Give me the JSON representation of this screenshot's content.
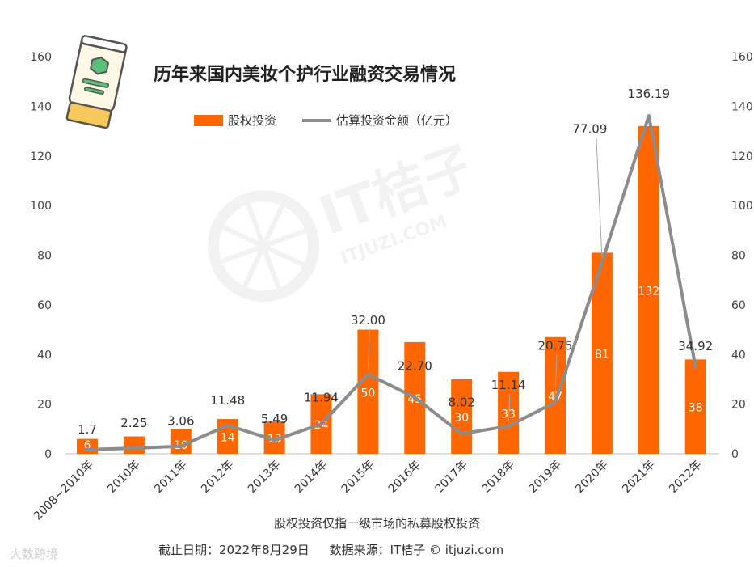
{
  "title": "历年来国内美妆个护行业融资交易情况",
  "legend": {
    "bar_label": "股权投资",
    "line_label": "估算投资金额（亿元）"
  },
  "note": "股权投资仅指一级市场的私募股权投资",
  "footer": {
    "date": "截止日期：2022年8月29日",
    "source": "数据来源：IT桔子 © itjuzi.com"
  },
  "watermark_bottom": "大数跨境",
  "watermark_center": "IT桔子",
  "watermark_center_sub": "ITJUZI.COM",
  "colors": {
    "bar": "#FF6600",
    "line": "#8C8C8C",
    "axis": "#BFBFBF"
  },
  "icon": "lotion-tube-icon",
  "chart_data": {
    "type": "bar",
    "categories": [
      "2008~2010年",
      "2010年",
      "2011年",
      "2012年",
      "2013年",
      "2014年",
      "2015年",
      "2016年",
      "2017年",
      "2018年",
      "2019年",
      "2020年",
      "2021年",
      "2022年"
    ],
    "series": [
      {
        "name": "股权投资",
        "type": "bar",
        "values": [
          6,
          7,
          10,
          14,
          13,
          24,
          50,
          45,
          30,
          33,
          47,
          81,
          132,
          38
        ]
      },
      {
        "name": "估算投资金额（亿元）",
        "type": "line",
        "values": [
          1.7,
          2.25,
          3.06,
          11.48,
          5.49,
          11.94,
          32.0,
          22.7,
          8.02,
          11.14,
          20.75,
          77.09,
          136.19,
          34.92
        ]
      }
    ],
    "bar_labels": [
      "6",
      "",
      "10",
      "14",
      "13",
      "24",
      "50",
      "45",
      "30",
      "33",
      "47",
      "81",
      "132",
      "38"
    ],
    "line_labels": [
      "1.7",
      "2.25",
      "3.06",
      "11.48",
      "5.49",
      "11.94",
      "32.00",
      "22.70",
      "8.02",
      "11.14",
      "20.75",
      "77.09",
      "136.19",
      "34.92"
    ],
    "ylim": [
      0,
      160
    ],
    "yticks": [
      0,
      20,
      40,
      60,
      80,
      100,
      120,
      140,
      160
    ],
    "y2lim": [
      0,
      160
    ],
    "y2ticks": [
      0,
      20,
      40,
      60,
      80,
      100,
      120,
      140,
      160
    ],
    "grid": false,
    "legend_position": "top"
  }
}
